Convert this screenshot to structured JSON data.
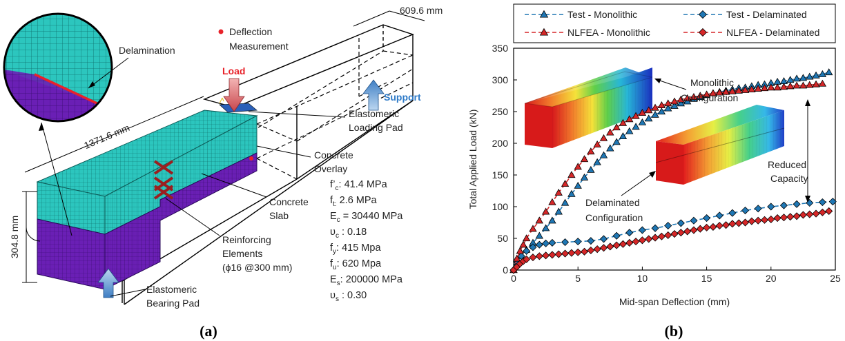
{
  "panel_a": {
    "caption": "(a)",
    "delamination_label": "Delamination",
    "deflection_label_1": "Deflection",
    "deflection_label_2": "Measurement",
    "load_label": "Load",
    "support_label": "Support",
    "dim_width": "609.6 mm",
    "dim_length": "1371.6 mm",
    "dim_depth": "304.8 mm",
    "loading_pad_1": "Elastomeric",
    "loading_pad_2": "Loading Pad",
    "overlay_1": "Concrete",
    "overlay_2": "Overlay",
    "slab_1": "Concrete",
    "slab_2": "Slab",
    "reinf_1": "Reinforcing",
    "reinf_2": "Elements",
    "reinf_3": "(ϕ16 @300 mm)",
    "bearing_1": "Elastomeric",
    "bearing_2": "Bearing Pad",
    "properties": [
      {
        "sym": "f’",
        "sub": "c",
        "val": ": 41.4 MPa"
      },
      {
        "sym": "f",
        "sub": "t:",
        "val": " 2.6 MPa"
      },
      {
        "sym": "E",
        "sub": "c",
        "val": " = 30440 MPa"
      },
      {
        "sym": "υ",
        "sub": "c",
        "val": " : 0.18"
      },
      {
        "sym": "f",
        "sub": "y",
        "val": ": 415 Mpa"
      },
      {
        "sym": "f",
        "sub": "u",
        "val": ": 620 Mpa"
      },
      {
        "sym": "E",
        "sub": "s",
        "val": ": 200000 MPa"
      },
      {
        "sym": "υ",
        "sub": "s",
        "val": " : 0.30"
      }
    ]
  },
  "panel_b": {
    "caption": "(b)",
    "annotations": {
      "mono_1": "Monolithic",
      "mono_2": "Configuration",
      "delam_1": "Delaminated",
      "delam_2": "Configuration",
      "reduced_1": "Reduced",
      "reduced_2": "Capacity"
    }
  },
  "colors": {
    "test": "#1f77b4",
    "test_line": "#2a6db8",
    "nlfea": "#d62728",
    "teal": "#2fc9c0",
    "purple": "#6a1fb5"
  },
  "chart_data": {
    "type": "line",
    "xlabel": "Mid-span Deflection (mm)",
    "ylabel": "Total Applied Load (kN)",
    "xlim": [
      0,
      25
    ],
    "ylim": [
      0,
      350
    ],
    "xticks": [
      0,
      5,
      10,
      15,
      20,
      25
    ],
    "yticks": [
      0,
      50,
      100,
      150,
      200,
      250,
      300,
      350
    ],
    "legend_position": "top",
    "series": [
      {
        "name": "Test - Monolithic",
        "marker": "triangle",
        "color": "#1f77b4",
        "dash": true,
        "x": [
          0,
          0.3,
          0.6,
          1,
          1.5,
          2,
          2.5,
          3,
          3.5,
          4,
          4.5,
          5,
          5.5,
          6,
          6.5,
          7,
          7.5,
          8,
          8.5,
          9,
          9.5,
          10,
          10.5,
          11,
          11.5,
          12,
          12.5,
          13,
          13.5,
          14,
          14.5,
          15,
          15.5,
          16,
          16.5,
          17,
          17.5,
          18,
          18.5,
          19,
          19.5,
          20,
          20.5,
          21,
          21.5,
          22,
          22.5,
          23,
          23.5,
          24,
          24.5
        ],
        "y": [
          0,
          12,
          22,
          32,
          43,
          54,
          66,
          78,
          92,
          106,
          120,
          133,
          146,
          158,
          170,
          181,
          192,
          202,
          211,
          219,
          226,
          233,
          239,
          245,
          250,
          255,
          259,
          263,
          266,
          270,
          273,
          276,
          279,
          281,
          283,
          285,
          287,
          288,
          290,
          292,
          293,
          295,
          297,
          298,
          300,
          302,
          303,
          305,
          307,
          309,
          312
        ]
      },
      {
        "name": "Test - Delaminated",
        "marker": "diamond",
        "color": "#1f77b4",
        "dash": true,
        "x": [
          0,
          0.3,
          0.6,
          1,
          1.5,
          2,
          2.5,
          3,
          4,
          5,
          6,
          7,
          8,
          9,
          10,
          11,
          12,
          13,
          14,
          15,
          16,
          17,
          18,
          19,
          20,
          21,
          22,
          23,
          24,
          24.8
        ],
        "y": [
          0,
          12,
          22,
          30,
          36,
          40,
          42,
          43,
          44,
          45,
          46,
          49,
          54,
          59,
          63,
          66,
          70,
          74,
          78,
          82,
          86,
          90,
          94,
          97,
          100,
          102,
          104,
          106,
          107,
          108
        ]
      },
      {
        "name": "NLFEA - Monolithic",
        "marker": "triangle",
        "color": "#d62728",
        "dash": true,
        "x": [
          0,
          0.25,
          0.5,
          0.75,
          1,
          1.5,
          2,
          2.5,
          3,
          3.5,
          4,
          4.5,
          5,
          5.5,
          6,
          6.5,
          7,
          7.5,
          8,
          8.5,
          9,
          9.5,
          10,
          10.5,
          11,
          11.5,
          12,
          12.5,
          13,
          13.5,
          14,
          14.5,
          15,
          15.5,
          16,
          16.5,
          17,
          17.5,
          18,
          18.5,
          19,
          19.5,
          20,
          20.5,
          21,
          21.5,
          22,
          22.5,
          23,
          23.5,
          24
        ],
        "y": [
          0,
          18,
          30,
          40,
          50,
          65,
          78,
          92,
          107,
          122,
          136,
          150,
          163,
          175,
          187,
          198,
          208,
          217,
          225,
          232,
          238,
          243,
          248,
          252,
          256,
          260,
          263,
          266,
          269,
          271,
          273,
          275,
          277,
          279,
          280,
          281,
          282,
          283,
          284,
          285,
          286,
          287,
          288,
          288,
          289,
          290,
          291,
          291,
          292,
          293,
          294
        ]
      },
      {
        "name": "NLFEA - Delaminated",
        "marker": "diamond",
        "color": "#d62728",
        "dash": true,
        "x": [
          0,
          0.25,
          0.5,
          0.75,
          1,
          1.5,
          2,
          2.5,
          3,
          3.5,
          4,
          4.5,
          5,
          5.5,
          6,
          6.5,
          7,
          7.5,
          8,
          8.5,
          9,
          9.5,
          10,
          10.5,
          11,
          11.5,
          12,
          12.5,
          13,
          13.5,
          14,
          14.5,
          15,
          15.5,
          16,
          16.5,
          17,
          17.5,
          18,
          18.5,
          19,
          19.5,
          20,
          20.5,
          21,
          21.5,
          22,
          22.5,
          23,
          23.5,
          24,
          24.5
        ],
        "y": [
          0,
          5,
          10,
          14,
          17,
          20,
          22,
          23,
          24,
          25,
          26,
          27,
          28,
          29,
          31,
          33,
          35,
          37,
          39,
          41,
          43,
          45,
          47,
          49,
          51,
          53,
          55,
          57,
          59,
          61,
          63,
          65,
          67,
          68,
          70,
          71,
          73,
          74,
          75,
          77,
          78,
          79,
          80,
          82,
          83,
          84,
          85,
          87,
          88,
          89,
          91,
          93
        ]
      }
    ]
  }
}
